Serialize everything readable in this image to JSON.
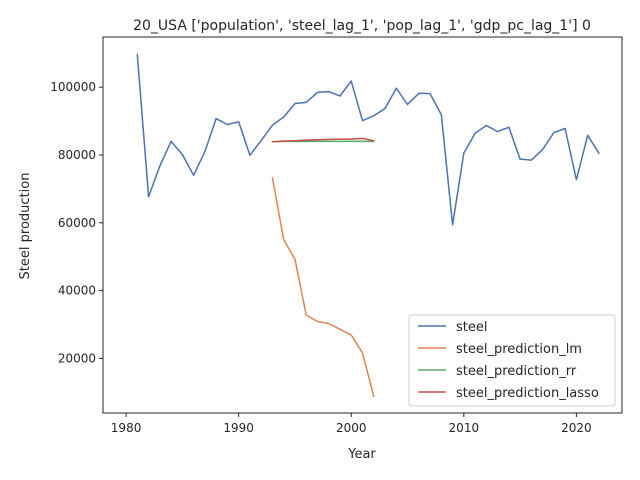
{
  "chart_data": {
    "type": "line",
    "title": "20_USA ['population', 'steel_lag_1', 'pop_lag_1', 'gdp_pc_lag_1'] 0",
    "xlabel": "Year",
    "ylabel": "Steel production",
    "xlim": [
      1977.95,
      2024.05
    ],
    "ylim": [
      3900,
      114800
    ],
    "xticks": [
      1980,
      1990,
      2000,
      2010,
      2020
    ],
    "yticks": [
      20000,
      40000,
      60000,
      80000,
      100000
    ],
    "grid": false,
    "legend_position": "lower right",
    "series": [
      {
        "name": "steel",
        "color": "#4c72b0",
        "x": [
          1981,
          1982,
          1983,
          1984,
          1985,
          1986,
          1987,
          1988,
          1989,
          1990,
          1991,
          1992,
          1993,
          1994,
          1995,
          1996,
          1997,
          1998,
          1999,
          2000,
          2001,
          2002,
          2003,
          2004,
          2005,
          2006,
          2007,
          2008,
          2009,
          2010,
          2011,
          2012,
          2013,
          2014,
          2015,
          2016,
          2017,
          2018,
          2019,
          2020,
          2021,
          2022
        ],
        "y": [
          109600,
          67700,
          76800,
          84000,
          80100,
          74000,
          81000,
          90700,
          89000,
          89800,
          79900,
          84300,
          88800,
          91200,
          95200,
          95500,
          98500,
          98700,
          97400,
          101800,
          90100,
          91600,
          93700,
          99700,
          94900,
          98200,
          98100,
          91900,
          59400,
          80500,
          86400,
          88700,
          86900,
          88200,
          78800,
          78500,
          81600,
          86600,
          87800,
          72700,
          85800,
          80500
        ]
      },
      {
        "name": "steel_prediction_lm",
        "color": "#dd8452",
        "x": [
          1993,
          1994,
          1995,
          1996,
          1997,
          1998,
          1999,
          2000,
          2001,
          2002
        ],
        "y": [
          73300,
          55000,
          49200,
          32800,
          30900,
          30300,
          28600,
          26900,
          21600,
          8800
        ]
      },
      {
        "name": "steel_prediction_rr",
        "color": "#55a868",
        "x": [
          1993,
          1994,
          1995,
          1996,
          1997,
          1998,
          1999,
          2000,
          2001,
          2002
        ],
        "y": [
          83900,
          84000,
          84000,
          84000,
          84000,
          84000,
          84000,
          84000,
          84000,
          84000
        ]
      },
      {
        "name": "steel_prediction_lasso",
        "color": "#c44e52",
        "x": [
          1993,
          1994,
          1995,
          1996,
          1997,
          1998,
          1999,
          2000,
          2001,
          2002
        ],
        "y": [
          83900,
          84100,
          84200,
          84400,
          84500,
          84600,
          84700,
          84700,
          84900,
          84200
        ]
      }
    ]
  }
}
